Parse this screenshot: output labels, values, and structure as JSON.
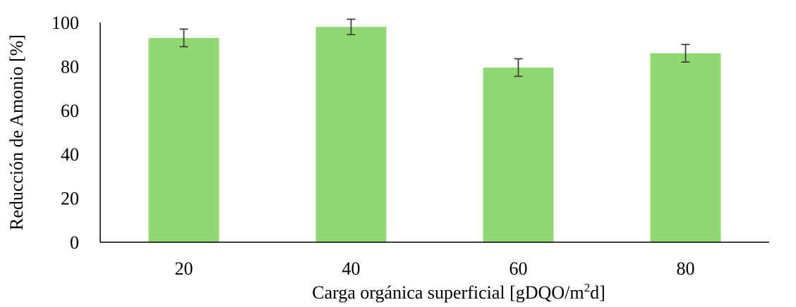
{
  "chart_data": {
    "type": "bar",
    "categories": [
      "20",
      "40",
      "60",
      "80"
    ],
    "values": [
      93,
      98,
      79.5,
      86
    ],
    "error": [
      4,
      3.5,
      4,
      4
    ],
    "ylim": [
      0,
      100
    ],
    "yticks": [
      "0",
      "20",
      "40",
      "60",
      "80",
      "100"
    ],
    "ylabel": "Reducción de Amonio [%]",
    "xlabel": {
      "text_before": "Carga orgánica superficial [gDQO/m",
      "superscript": "2",
      "text_after": "d]"
    },
    "grid": false,
    "legend": "none",
    "bar_color": "#8fd972",
    "errorbar_color": "#404040",
    "axis_color": "#000000"
  }
}
